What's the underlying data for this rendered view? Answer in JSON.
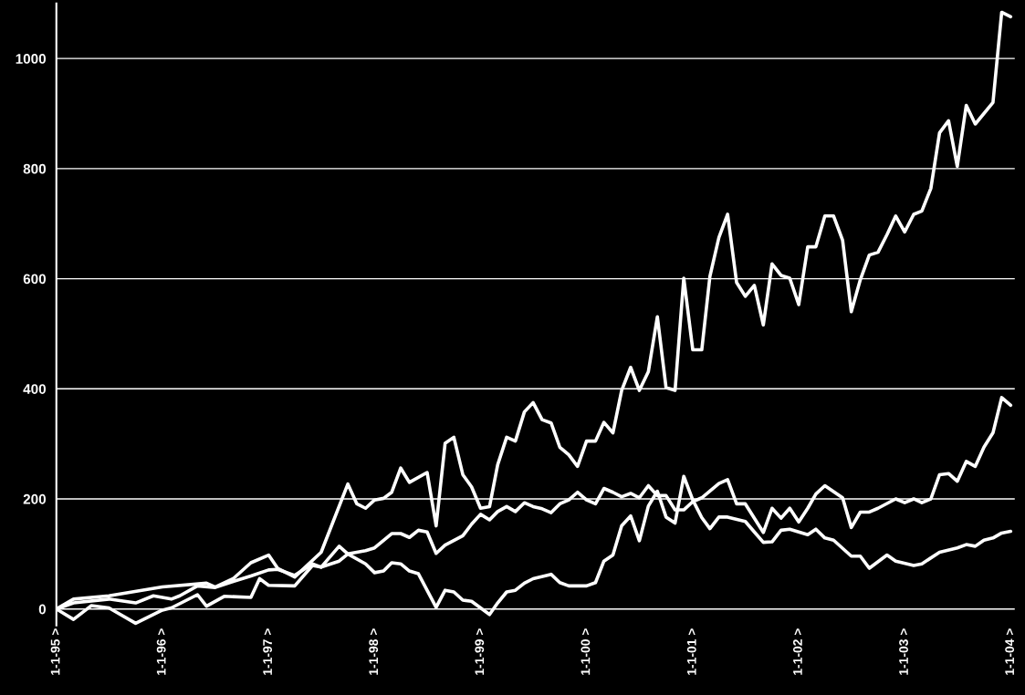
{
  "chart_data": {
    "type": "line",
    "xlim": [
      "1995-01-01",
      "2004-01-15"
    ],
    "ylim": [
      -30,
      1100
    ],
    "xticks": [
      {
        "value": "1995-01-01",
        "label": "1-1-95 >"
      },
      {
        "value": "1996-01-01",
        "label": "1-1-96 >"
      },
      {
        "value": "1997-01-01",
        "label": "1-1-97 >"
      },
      {
        "value": "1998-01-01",
        "label": "1-1-98 >"
      },
      {
        "value": "1999-01-01",
        "label": "1-1-99 >"
      },
      {
        "value": "2000-01-01",
        "label": "1-1-00 >"
      },
      {
        "value": "2001-01-01",
        "label": "1-1-01 >"
      },
      {
        "value": "2002-01-01",
        "label": "1-1-02 >"
      },
      {
        "value": "2003-01-01",
        "label": "1-1-03 >"
      },
      {
        "value": "2004-01-01",
        "label": "1-1-04 >"
      }
    ],
    "yticks": [
      0,
      200,
      400,
      600,
      800,
      1000
    ],
    "grid": "y",
    "marker": "none",
    "line_style": "solid",
    "series": [
      {
        "color": "#ffffff",
        "x": [
          "1995-01",
          "1995-03",
          "1995-07",
          "1996-01",
          "1996-06",
          "1996-07",
          "1996-09",
          "1996-11",
          "1997-01",
          "1997-02",
          "1997-04",
          "1997-07",
          "1997-10",
          "1997-11",
          "1997-12",
          "1998-01",
          "1998-02",
          "1998-03",
          "1998-04",
          "1998-05",
          "1998-07",
          "1998-08",
          "1998-09",
          "1998-10",
          "1998-11",
          "1998-12",
          "1999-01",
          "1999-02",
          "1999-03",
          "1999-04",
          "1999-05",
          "1999-06",
          "1999-07",
          "1999-08",
          "1999-09",
          "1999-10",
          "1999-11",
          "1999-12",
          "2000-01",
          "2000-02",
          "2000-03",
          "2000-04",
          "2000-05",
          "2000-06",
          "2000-07",
          "2000-08",
          "2000-09",
          "2000-10",
          "2000-11",
          "2000-12",
          "2001-01",
          "2001-02",
          "2001-03",
          "2001-04",
          "2001-05",
          "2001-06",
          "2001-07",
          "2001-08",
          "2001-09",
          "2001-10",
          "2001-11",
          "2001-12",
          "2002-01",
          "2002-02",
          "2002-03",
          "2002-04",
          "2002-05",
          "2002-06",
          "2002-07",
          "2002-08",
          "2002-09",
          "2002-10",
          "2002-11",
          "2002-12",
          "2003-01",
          "2003-02",
          "2003-03",
          "2003-04",
          "2003-05",
          "2003-06",
          "2003-07",
          "2003-08",
          "2003-09",
          "2003-11",
          "2003-12",
          "2004-01"
        ],
        "values": [
          0,
          18,
          24,
          40,
          47,
          40,
          55,
          84,
          98,
          74,
          58,
          103,
          227,
          191,
          183,
          198,
          201,
          212,
          256,
          230,
          248,
          151,
          301,
          312,
          244,
          222,
          183,
          186,
          262,
          312,
          305,
          358,
          375,
          344,
          338,
          294,
          280,
          259,
          305,
          305,
          339,
          320,
          397,
          439,
          397,
          431,
          531,
          402,
          397,
          601,
          471,
          471,
          604,
          675,
          717,
          593,
          568,
          588,
          516,
          627,
          606,
          601,
          553,
          658,
          658,
          714,
          714,
          670,
          540,
          598,
          643,
          648,
          680,
          714,
          685,
          717,
          723,
          764,
          865,
          887,
          804,
          915,
          881,
          920,
          1084,
          1076
        ]
      },
      {
        "color": "#ffffff",
        "x": [
          "1995-01",
          "1995-03",
          "1995-05",
          "1995-07",
          "1995-10",
          "1996-01",
          "1996-02",
          "1996-05",
          "1996-06",
          "1996-08",
          "1996-11",
          "1996-12",
          "1997-01",
          "1997-04",
          "1997-06",
          "1997-07",
          "1997-09",
          "1997-10",
          "1997-12",
          "1998-01",
          "1998-02",
          "1998-03",
          "1998-04",
          "1998-05",
          "1998-06",
          "1998-08",
          "1998-09",
          "1998-10",
          "1998-11",
          "1998-12",
          "1999-02",
          "1999-03",
          "1999-04",
          "1999-05",
          "1999-06",
          "1999-07",
          "1999-09",
          "1999-10",
          "1999-11",
          "2000-01",
          "2000-02",
          "2000-03",
          "2000-04",
          "2000-05",
          "2000-06",
          "2000-07",
          "2000-08",
          "2000-09",
          "2000-10",
          "2000-11",
          "2000-12",
          "2001-01",
          "2001-02",
          "2001-03",
          "2001-04",
          "2001-05",
          "2001-07",
          "2001-08",
          "2001-09",
          "2001-10",
          "2001-11",
          "2001-12",
          "2002-02",
          "2002-03",
          "2002-04",
          "2002-05",
          "2002-07",
          "2002-08",
          "2002-09",
          "2002-11",
          "2002-12",
          "2003-02",
          "2003-03",
          "2003-05",
          "2003-07",
          "2003-08",
          "2003-09",
          "2003-10",
          "2003-11",
          "2003-12",
          "2004-01"
        ],
        "values": [
          0,
          -19,
          6,
          2,
          -26,
          -2,
          2,
          26,
          5,
          23,
          21,
          55,
          43,
          42,
          79,
          76,
          114,
          100,
          82,
          66,
          69,
          84,
          82,
          69,
          64,
          3,
          34,
          31,
          16,
          14,
          -10,
          11,
          31,
          34,
          47,
          55,
          63,
          48,
          42,
          42,
          48,
          87,
          98,
          151,
          169,
          124,
          187,
          214,
          167,
          156,
          241,
          198,
          166,
          146,
          167,
          167,
          159,
          140,
          121,
          122,
          143,
          145,
          135,
          145,
          129,
          125,
          96,
          96,
          74,
          98,
          87,
          79,
          82,
          103,
          111,
          117,
          114,
          125,
          129,
          138,
          141
        ]
      },
      {
        "color": "#ffffff",
        "x": [
          "1995-01",
          "1995-03",
          "1995-07",
          "1995-10",
          "1995-12",
          "1996-02",
          "1996-03",
          "1996-05",
          "1996-07",
          "1996-09",
          "1996-11",
          "1997-01",
          "1997-02",
          "1997-04",
          "1997-06",
          "1997-07",
          "1997-09",
          "1997-10",
          "1997-12",
          "1998-01",
          "1998-03",
          "1998-04",
          "1998-05",
          "1998-06",
          "1998-07",
          "1998-08",
          "1998-09",
          "1998-11",
          "1998-12",
          "1999-01",
          "1999-02",
          "1999-03",
          "1999-04",
          "1999-05",
          "1999-06",
          "1999-07",
          "1999-08",
          "1999-09",
          "1999-10",
          "1999-11",
          "1999-12",
          "2000-01",
          "2000-02",
          "2000-03",
          "2000-04",
          "2000-05",
          "2000-06",
          "2000-07",
          "2000-08",
          "2000-09",
          "2000-10",
          "2000-11",
          "2000-12",
          "2001-01",
          "2001-02",
          "2001-04",
          "2001-05",
          "2001-06",
          "2001-07",
          "2001-09",
          "2001-10",
          "2001-11",
          "2001-12",
          "2002-01",
          "2002-02",
          "2002-03",
          "2002-04",
          "2002-06",
          "2002-07",
          "2002-08",
          "2002-09",
          "2002-10",
          "2002-12",
          "2003-01",
          "2003-02",
          "2003-03",
          "2003-04",
          "2003-05",
          "2003-06",
          "2003-07",
          "2003-08",
          "2003-09",
          "2003-10",
          "2003-11",
          "2003-12",
          "2004-01"
        ],
        "values": [
          0,
          11,
          18,
          11,
          24,
          18,
          24,
          42,
          39,
          50,
          60,
          71,
          72,
          61,
          82,
          76,
          87,
          100,
          106,
          111,
          137,
          137,
          130,
          143,
          140,
          101,
          116,
          133,
          154,
          172,
          162,
          177,
          186,
          177,
          193,
          186,
          182,
          175,
          191,
          198,
          212,
          198,
          191,
          219,
          212,
          204,
          210,
          202,
          224,
          206,
          206,
          180,
          180,
          195,
          202,
          228,
          235,
          191,
          191,
          139,
          183,
          165,
          183,
          158,
          183,
          209,
          224,
          202,
          148,
          176,
          176,
          183,
          200,
          193,
          200,
          193,
          200,
          244,
          246,
          232,
          268,
          259,
          294,
          320,
          384,
          370
        ]
      }
    ]
  }
}
